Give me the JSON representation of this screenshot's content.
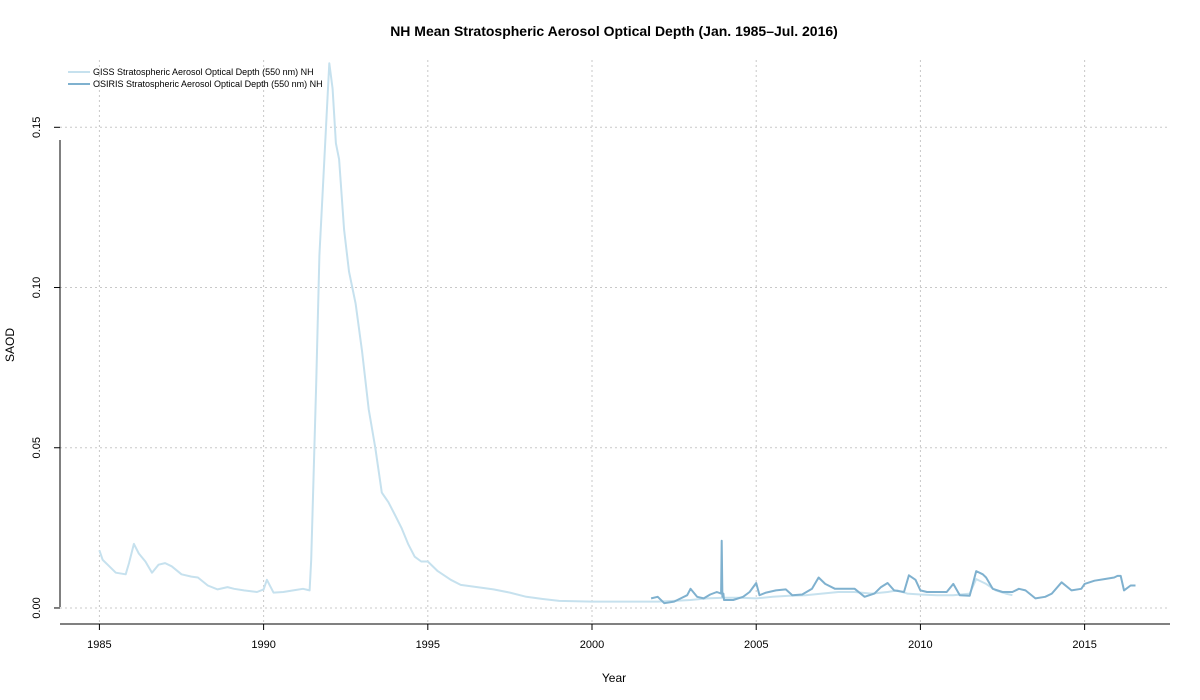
{
  "chart_data": {
    "type": "line",
    "title": "NH Mean Stratospheric Aerosol Optical Depth (Jan. 1985–Jul. 2016)",
    "xlabel": "Year",
    "ylabel": "SAOD",
    "xlim": [
      1983.8,
      2017.6
    ],
    "ylim": [
      -0.005,
      0.171
    ],
    "x_ticks": [
      1985,
      1990,
      1995,
      2000,
      2005,
      2010,
      2015
    ],
    "y_ticks": [
      0.0,
      0.05,
      0.1,
      0.15
    ],
    "y_tick_labels": [
      "0.00",
      "0.05",
      "0.10",
      "0.15"
    ],
    "grid": true,
    "legend_position": "top-left",
    "series": [
      {
        "name": "GISS Stratospheric Aerosol Optical Depth (550 nm) NH",
        "color": "#c6e1ee",
        "x": [
          1985.0,
          1985.1,
          1985.3,
          1985.5,
          1985.8,
          1985.9,
          1986.05,
          1986.2,
          1986.4,
          1986.6,
          1986.8,
          1987.0,
          1987.2,
          1987.5,
          1987.8,
          1988.0,
          1988.3,
          1988.6,
          1988.9,
          1989.1,
          1989.4,
          1989.8,
          1990.0,
          1990.1,
          1990.3,
          1990.6,
          1990.9,
          1991.2,
          1991.4,
          1991.45,
          1991.6,
          1991.7,
          1991.8,
          1992.0,
          1992.1,
          1992.2,
          1992.3,
          1992.45,
          1992.6,
          1992.8,
          1993.0,
          1993.2,
          1993.4,
          1993.6,
          1993.8,
          1994.0,
          1994.2,
          1994.4,
          1994.6,
          1994.8,
          1995.0,
          1995.3,
          1995.7,
          1996.0,
          1996.5,
          1997.0,
          1997.5,
          1998.0,
          1998.5,
          1999.0,
          2000.0,
          2001.0,
          2002.0,
          2002.5,
          2003.0,
          2003.5,
          2004.0,
          2004.5,
          2005.0,
          2005.5,
          2006.0,
          2006.5,
          2007.0,
          2007.5,
          2008.0,
          2008.5,
          2009.0,
          2009.3,
          2009.6,
          2010.0,
          2010.5,
          2011.0,
          2011.5,
          2011.7,
          2012.0,
          2012.3,
          2012.6,
          2012.8
        ],
        "y": [
          0.018,
          0.015,
          0.013,
          0.011,
          0.0105,
          0.014,
          0.02,
          0.017,
          0.0145,
          0.011,
          0.0135,
          0.014,
          0.013,
          0.0105,
          0.0098,
          0.0095,
          0.007,
          0.0058,
          0.0065,
          0.006,
          0.0055,
          0.005,
          0.0058,
          0.0088,
          0.0048,
          0.005,
          0.0055,
          0.006,
          0.0055,
          0.015,
          0.07,
          0.11,
          0.13,
          0.17,
          0.162,
          0.145,
          0.14,
          0.118,
          0.105,
          0.095,
          0.08,
          0.062,
          0.05,
          0.036,
          0.033,
          0.029,
          0.025,
          0.02,
          0.016,
          0.0145,
          0.0145,
          0.0115,
          0.0088,
          0.0072,
          0.0065,
          0.0058,
          0.0048,
          0.0035,
          0.0028,
          0.0022,
          0.002,
          0.002,
          0.002,
          0.0022,
          0.0025,
          0.003,
          0.0032,
          0.0032,
          0.003,
          0.0035,
          0.0038,
          0.004,
          0.0045,
          0.005,
          0.005,
          0.0045,
          0.005,
          0.0055,
          0.0045,
          0.0042,
          0.004,
          0.004,
          0.0045,
          0.009,
          0.0075,
          0.0055,
          0.0045,
          0.004
        ]
      },
      {
        "name": "OSIRIS Stratospheric Aerosol Optical Depth (550 nm) NH",
        "color": "#7fb1cf",
        "x": [
          2001.8,
          2002.0,
          2002.2,
          2002.5,
          2002.7,
          2002.9,
          2003.0,
          2003.2,
          2003.4,
          2003.6,
          2003.8,
          2003.93,
          2003.95,
          2003.97,
          2004.0,
          2004.02,
          2004.1,
          2004.3,
          2004.6,
          2004.8,
          2005.0,
          2005.1,
          2005.3,
          2005.6,
          2005.9,
          2006.1,
          2006.4,
          2006.7,
          2006.9,
          2007.1,
          2007.4,
          2007.7,
          2008.0,
          2008.3,
          2008.6,
          2008.8,
          2009.0,
          2009.2,
          2009.5,
          2009.65,
          2009.85,
          2010.0,
          2010.2,
          2010.5,
          2010.8,
          2011.0,
          2011.2,
          2011.5,
          2011.7,
          2011.9,
          2012.0,
          2012.2,
          2012.5,
          2012.8,
          2013.0,
          2013.2,
          2013.5,
          2013.8,
          2014.0,
          2014.3,
          2014.6,
          2014.9,
          2015.0,
          2015.3,
          2015.6,
          2015.9,
          2016.0,
          2016.1,
          2016.2,
          2016.4,
          2016.55
        ],
        "y": [
          0.003,
          0.0035,
          0.0015,
          0.002,
          0.003,
          0.004,
          0.006,
          0.0035,
          0.003,
          0.0042,
          0.005,
          0.0045,
          0.021,
          0.0035,
          0.0045,
          0.0025,
          0.0025,
          0.0025,
          0.0035,
          0.005,
          0.0078,
          0.004,
          0.0048,
          0.0055,
          0.0058,
          0.004,
          0.0042,
          0.006,
          0.0095,
          0.0075,
          0.006,
          0.006,
          0.006,
          0.0035,
          0.0045,
          0.0065,
          0.0078,
          0.0055,
          0.005,
          0.0102,
          0.0088,
          0.0055,
          0.005,
          0.005,
          0.005,
          0.0075,
          0.004,
          0.0038,
          0.0115,
          0.0105,
          0.0095,
          0.006,
          0.005,
          0.005,
          0.006,
          0.0055,
          0.003,
          0.0035,
          0.0045,
          0.008,
          0.0055,
          0.006,
          0.0075,
          0.0085,
          0.009,
          0.0095,
          0.01,
          0.01,
          0.0055,
          0.007,
          0.007
        ]
      }
    ]
  }
}
